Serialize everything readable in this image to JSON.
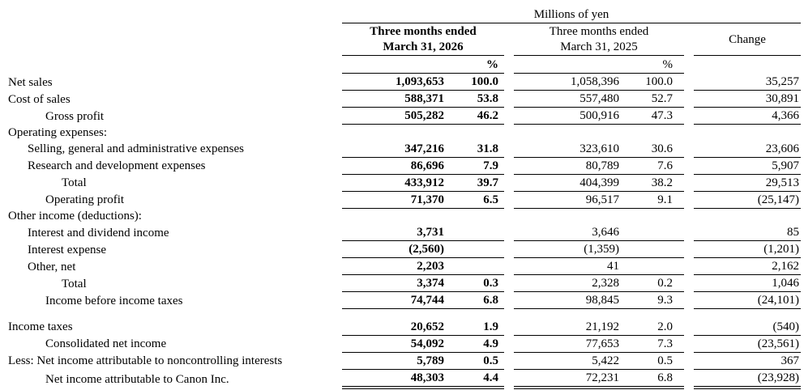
{
  "table": {
    "unit_label": "Millions of yen",
    "percent_symbol": "%",
    "columns": {
      "current": {
        "line1": "Three months ended",
        "line2": "March 31, 2026"
      },
      "prior": {
        "line1": "Three months ended",
        "line2": "March 31, 2025"
      },
      "change_label": "Change"
    },
    "rows": [
      {
        "type": "data",
        "label": "Net sales",
        "indent": 0,
        "v2026": "1,093,653",
        "p2026": "100.0",
        "v2025": "1,058,396",
        "p2025": "100.0",
        "change": "35,257"
      },
      {
        "type": "data",
        "label": "Cost of sales",
        "indent": 0,
        "v2026": "588,371",
        "p2026": "53.8",
        "v2025": "557,480",
        "p2025": "52.7",
        "change": "30,891"
      },
      {
        "type": "data",
        "label": "Gross profit",
        "indent": 2,
        "v2026": "505,282",
        "p2026": "46.2",
        "v2025": "500,916",
        "p2025": "47.3",
        "change": "4,366"
      },
      {
        "type": "section",
        "label": "Operating expenses:",
        "indent": 0
      },
      {
        "type": "data",
        "label": "Selling, general and administrative expenses",
        "indent": 1,
        "v2026": "347,216",
        "p2026": "31.8",
        "v2025": "323,610",
        "p2025": "30.6",
        "change": "23,606"
      },
      {
        "type": "data",
        "label": "Research and development expenses",
        "indent": 1,
        "v2026": "86,696",
        "p2026": "7.9",
        "v2025": "80,789",
        "p2025": "7.6",
        "change": "5,907"
      },
      {
        "type": "data",
        "label": "Total",
        "indent": 3,
        "v2026": "433,912",
        "p2026": "39.7",
        "v2025": "404,399",
        "p2025": "38.2",
        "change": "29,513"
      },
      {
        "type": "data",
        "label": "Operating profit",
        "indent": 2,
        "v2026": "71,370",
        "p2026": "6.5",
        "v2025": "96,517",
        "p2025": "9.1",
        "change": "(25,147)"
      },
      {
        "type": "section",
        "label": "Other income (deductions):",
        "indent": 0
      },
      {
        "type": "data",
        "label": "Interest and dividend income",
        "indent": 1,
        "v2026": "3,731",
        "p2026": "",
        "v2025": "3,646",
        "p2025": "",
        "change": "85"
      },
      {
        "type": "data",
        "label": "Interest expense",
        "indent": 1,
        "v2026": "(2,560)",
        "p2026": "",
        "v2025": "(1,359)",
        "p2025": "",
        "change": "(1,201)"
      },
      {
        "type": "data",
        "label": "Other, net",
        "indent": 1,
        "v2026": "2,203",
        "p2026": "",
        "v2025": "41",
        "p2025": "",
        "change": "2,162"
      },
      {
        "type": "data",
        "label": "Total",
        "indent": 3,
        "v2026": "3,374",
        "p2026": "0.3",
        "v2025": "2,328",
        "p2025": "0.2",
        "change": "1,046"
      },
      {
        "type": "data",
        "label": "Income before income taxes",
        "indent": 2,
        "v2026": "74,744",
        "p2026": "6.8",
        "v2025": "98,845",
        "p2025": "9.3",
        "change": "(24,101)"
      },
      {
        "type": "spacer"
      },
      {
        "type": "data",
        "label": "Income taxes",
        "indent": 0,
        "v2026": "20,652",
        "p2026": "1.9",
        "v2025": "21,192",
        "p2025": "2.0",
        "change": "(540)"
      },
      {
        "type": "data",
        "label": "Consolidated net income",
        "indent": 2,
        "v2026": "54,092",
        "p2026": "4.9",
        "v2025": "77,653",
        "p2025": "7.3",
        "change": "(23,561)"
      },
      {
        "type": "data",
        "label": "Less: Net income attributable to noncontrolling interests",
        "indent": 0,
        "v2026": "5,789",
        "p2026": "0.5",
        "v2025": "5,422",
        "p2025": "0.5",
        "change": "367"
      },
      {
        "type": "data",
        "label": "Net income attributable to Canon Inc.",
        "indent": 2,
        "v2026": "48,303",
        "p2026": "4.4",
        "v2025": "72,231",
        "p2025": "6.8",
        "change": "(23,928)",
        "final": true
      }
    ]
  }
}
